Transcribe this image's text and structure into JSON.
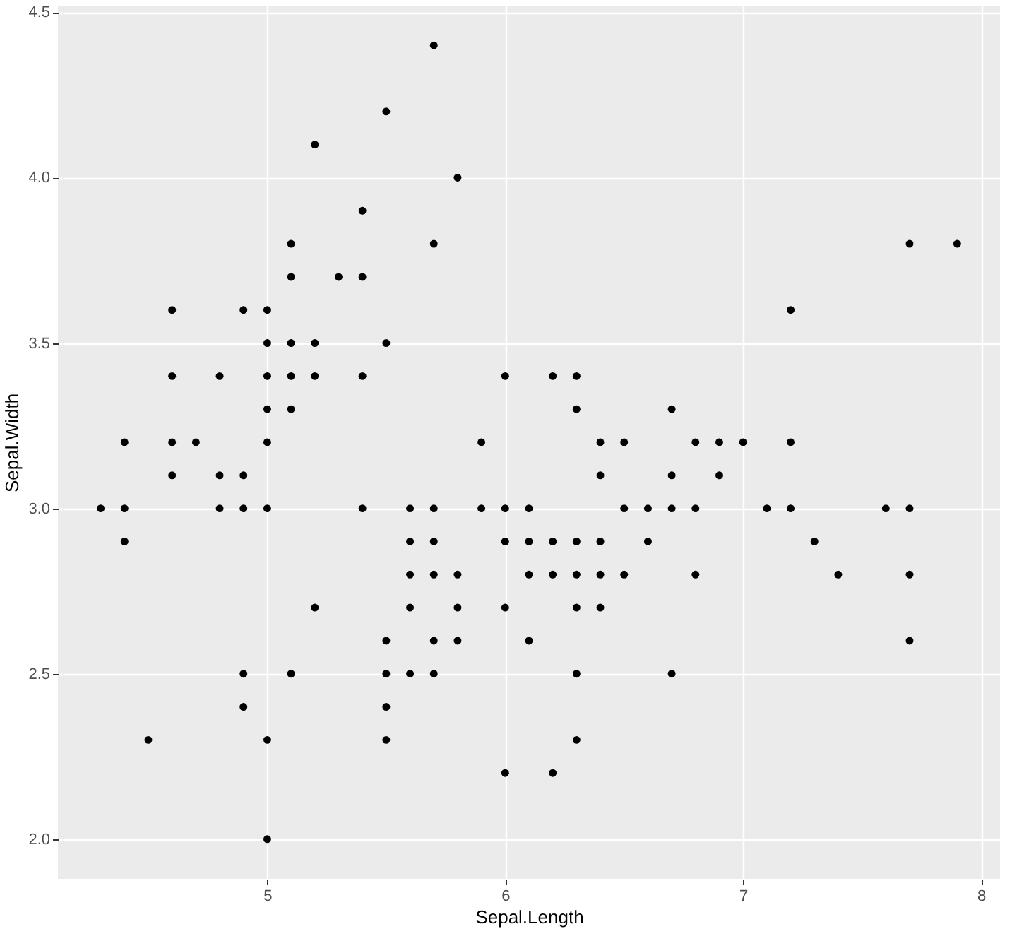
{
  "chart_data": {
    "type": "scatter",
    "xlabel": "Sepal.Length",
    "ylabel": "Sepal.Width",
    "x": [
      5.1,
      4.9,
      4.7,
      4.6,
      5.0,
      5.4,
      4.6,
      5.0,
      4.4,
      4.9,
      5.4,
      4.8,
      4.8,
      4.3,
      5.8,
      5.7,
      5.7,
      5.1,
      5.4,
      5.1,
      4.6,
      5.1,
      5.0,
      5.2,
      5.2,
      4.8,
      5.2,
      5.5,
      5.0,
      5.5,
      4.9,
      4.4,
      5.1,
      5.0,
      4.5,
      4.4,
      4.6,
      5.3,
      5.0,
      7.0,
      6.4,
      6.9,
      5.5,
      6.5,
      5.7,
      6.3,
      4.9,
      6.6,
      5.2,
      5.0,
      5.9,
      6.0,
      6.1,
      5.6,
      6.7,
      5.6,
      5.8,
      6.2,
      5.6,
      5.9,
      6.1,
      6.3,
      6.4,
      6.6,
      6.8,
      6.7,
      6.0,
      5.7,
      5.5,
      6.0,
      5.4,
      6.0,
      6.3,
      5.5,
      5.5,
      6.1,
      5.8,
      5.0,
      5.6,
      5.7,
      5.7,
      6.2,
      5.1,
      7.1,
      6.3,
      6.5,
      7.6,
      4.9,
      7.3,
      6.7,
      7.2,
      6.5,
      6.4,
      6.8,
      5.7,
      5.8,
      7.7,
      7.7,
      6.9,
      5.6,
      7.7,
      6.3,
      6.7,
      7.2,
      6.2,
      6.4,
      7.2,
      7.4,
      7.9,
      6.3,
      6.1,
      7.7,
      6.3,
      6.4,
      6.0,
      6.8,
      6.2
    ],
    "series": [
      {
        "color": "#000000",
        "values": [
          3.5,
          3.0,
          3.2,
          3.1,
          3.6,
          3.9,
          3.4,
          3.4,
          2.9,
          3.1,
          3.7,
          3.4,
          3.0,
          3.0,
          4.0,
          4.4,
          3.8,
          3.8,
          3.4,
          3.7,
          3.6,
          3.3,
          3.0,
          3.5,
          3.4,
          3.1,
          4.1,
          4.2,
          3.2,
          3.5,
          3.6,
          3.0,
          3.4,
          3.5,
          2.3,
          3.2,
          3.2,
          3.7,
          3.3,
          3.2,
          3.2,
          3.1,
          2.3,
          2.8,
          2.8,
          3.3,
          2.4,
          2.9,
          2.7,
          2.0,
          3.0,
          2.2,
          2.9,
          2.9,
          3.1,
          3.0,
          2.7,
          2.2,
          2.5,
          3.2,
          2.8,
          2.5,
          2.9,
          3.0,
          2.8,
          3.0,
          2.9,
          2.6,
          2.4,
          2.7,
          3.0,
          3.4,
          2.3,
          2.5,
          2.6,
          3.0,
          2.6,
          2.3,
          2.7,
          3.0,
          2.9,
          2.9,
          2.5,
          3.0,
          2.9,
          3.0,
          3.0,
          2.5,
          2.9,
          2.5,
          3.6,
          3.2,
          2.7,
          3.0,
          2.5,
          2.8,
          3.8,
          2.6,
          3.2,
          2.8,
          2.8,
          2.7,
          3.3,
          3.2,
          2.8,
          2.8,
          3.0,
          2.8,
          3.8,
          2.8,
          2.6,
          3.0,
          3.4,
          3.1,
          3.0,
          3.2,
          3.4
        ]
      }
    ],
    "xlim": [
      4.12,
      8.08
    ],
    "xticks": [
      5,
      6,
      7,
      8
    ],
    "ylim": [
      1.88,
      4.52
    ],
    "yticks": [
      {
        "value": 2,
        "label": "2.0"
      },
      2.5,
      {
        "value": 3,
        "label": "3.0"
      },
      3.5,
      {
        "value": 4,
        "label": "4.0"
      },
      4.5
    ],
    "grid": true,
    "marker": "circle"
  }
}
